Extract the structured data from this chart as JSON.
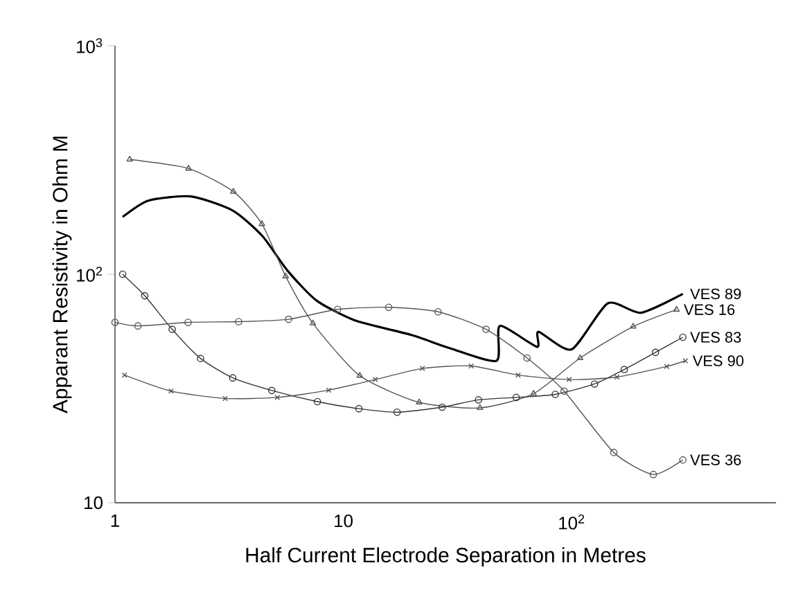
{
  "chart_data": {
    "type": "line",
    "xlabel": "Half Current Electrode Separation in Metres",
    "ylabel": "Apparant Resistivity in Ohm M",
    "log": "xy",
    "xlim": [
      1,
      785
    ],
    "ylim": [
      10,
      1000
    ],
    "xticks": [
      1,
      10,
      {
        "value": 100,
        "label": "10$^{2}$"
      }
    ],
    "yticks": [
      10,
      {
        "value": 100,
        "label": "10$^{2}$"
      },
      {
        "value": 1000,
        "label": "10$^{3}$"
      }
    ],
    "grid": false,
    "legend": false,
    "series": [
      {
        "name": "VES 89",
        "color": "#000000",
        "marker": "none",
        "x": [
          1.08,
          1.4,
          2.15,
          3.28,
          4.42,
          5.68,
          7.66,
          11.4,
          19.8,
          29.4,
          46.9,
          48.5,
          70.5,
          71.6,
          100,
          144,
          201,
          307
        ],
        "values": [
          178,
          210,
          219,
          190,
          147,
          104,
          76.5,
          62.5,
          54.3,
          47.4,
          41.8,
          59.4,
          48.1,
          56,
          46.9,
          74.6,
          67.8,
          82
        ]
      },
      {
        "name": "VES 16",
        "color": "#555555",
        "marker": "triangle",
        "x": [
          1.16,
          2.1,
          3.3,
          4.4,
          5.59,
          7.36,
          11.8,
          21.5,
          39.7,
          68.1,
          109,
          186,
          288
        ],
        "values": [
          318,
          290,
          230,
          166,
          98,
          61,
          36,
          27.5,
          26,
          30,
          43,
          59,
          70
        ]
      },
      {
        "name": "VES 83",
        "color": "#333333",
        "marker": "circle",
        "x": [
          1.08,
          1.35,
          1.78,
          2.37,
          3.28,
          4.86,
          7.7,
          11.7,
          17.2,
          27.1,
          39.1,
          57.2,
          84.8,
          126,
          170,
          233,
          307
        ],
        "values": [
          100,
          80.5,
          57.4,
          42.8,
          35.2,
          31,
          27.7,
          25.8,
          24.9,
          26.2,
          28.2,
          28.9,
          29.8,
          33.1,
          38.3,
          45.5,
          53
        ]
      },
      {
        "name": "VES 90",
        "color": "#555555",
        "marker": "cross",
        "x": [
          1.1,
          1.76,
          3.04,
          5.14,
          8.63,
          13.8,
          22.2,
          36.3,
          58.3,
          97.5,
          158,
          261,
          315
        ],
        "values": [
          36.2,
          30.8,
          28.6,
          28.9,
          31.1,
          34.6,
          38.7,
          39.7,
          36.2,
          34.6,
          35.5,
          39.5,
          41.8
        ]
      },
      {
        "name": "VES 36",
        "color": "#555555",
        "marker": "circle",
        "x": [
          1,
          1.26,
          2.09,
          3.48,
          5.76,
          9.44,
          15.8,
          26,
          42.2,
          63.8,
          92.7,
          153,
          228,
          307
        ],
        "values": [
          61.6,
          59.4,
          61.6,
          62,
          63.5,
          70.2,
          71.7,
          68.5,
          57.4,
          43,
          30.8,
          16.6,
          13.3,
          15.4
        ]
      }
    ]
  }
}
